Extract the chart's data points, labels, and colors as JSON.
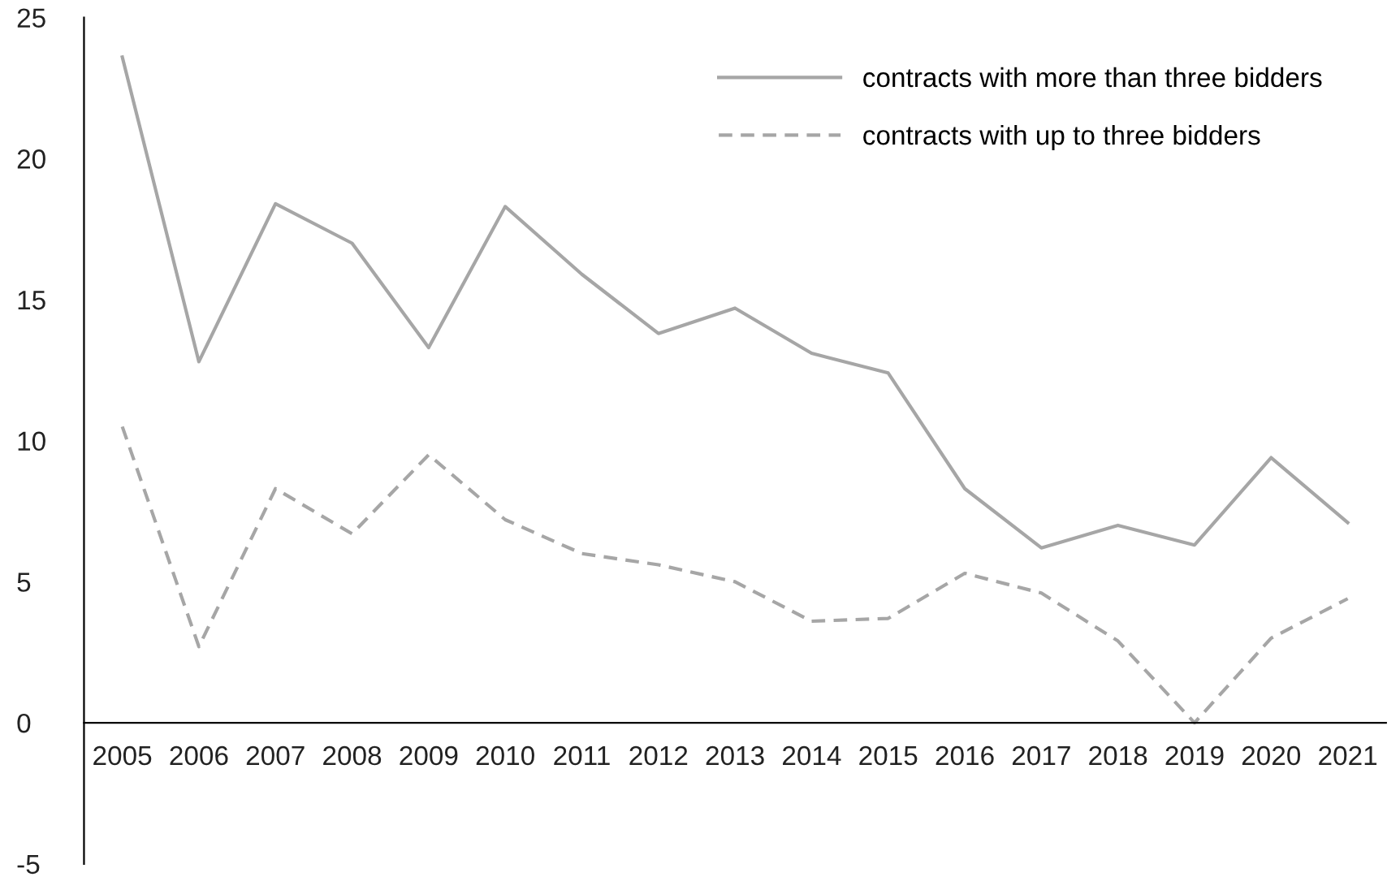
{
  "chart_data": {
    "type": "line",
    "categories": [
      "2005",
      "2006",
      "2007",
      "2008",
      "2009",
      "2010",
      "2011",
      "2012",
      "2013",
      "2014",
      "2015",
      "2016",
      "2017",
      "2018",
      "2019",
      "2020",
      "2021"
    ],
    "series": [
      {
        "name": "contracts with more than three bidders",
        "color": "#a6a6a6",
        "line_style": "solid",
        "values": [
          23.6,
          12.8,
          18.4,
          17.0,
          13.3,
          18.3,
          15.9,
          13.8,
          14.7,
          13.1,
          12.4,
          8.3,
          6.2,
          7.0,
          6.3,
          9.4,
          7.1
        ]
      },
      {
        "name": "contracts with up to three bidders",
        "color": "#a6a6a6",
        "line_style": "dashed",
        "values": [
          10.5,
          2.7,
          8.3,
          6.7,
          9.5,
          7.2,
          6.0,
          5.6,
          5.0,
          3.6,
          3.7,
          5.3,
          4.6,
          2.9,
          0.0,
          3.0,
          4.4
        ]
      }
    ],
    "ylim": [
      -5,
      25
    ],
    "yticks": [
      -5,
      0,
      5,
      10,
      15,
      20,
      25
    ],
    "grid": false,
    "legend": "top right",
    "marker": "none"
  }
}
